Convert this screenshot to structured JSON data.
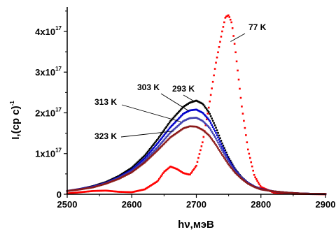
{
  "chart_data": {
    "type": "scatter",
    "xlabel": "hν,мэВ",
    "ylabel": "I,(ср с)",
    "ylabel_exp": "-1",
    "xlim": [
      2500,
      2900
    ],
    "ylim": [
      0,
      4.6e+17
    ],
    "x_ticks": [
      {
        "value": 2500,
        "label": "2500"
      },
      {
        "value": 2600,
        "label": "2600"
      },
      {
        "value": 2700,
        "label": "2700"
      },
      {
        "value": 2800,
        "label": "2800"
      },
      {
        "value": 2900,
        "label": "2900"
      }
    ],
    "y_ticks": [
      {
        "value": 0,
        "base": "0",
        "exp": ""
      },
      {
        "value": 1e+17,
        "base": "1x10",
        "exp": "17"
      },
      {
        "value": 2e+17,
        "base": "2x10",
        "exp": "17"
      },
      {
        "value": 3e+17,
        "base": "3x10",
        "exp": "17"
      },
      {
        "value": 4e+17,
        "base": "4x10",
        "exp": "17"
      }
    ],
    "grid": false,
    "legend": "none",
    "series": [
      {
        "name": "77 K",
        "color": "#ff0000",
        "x": [
          2500,
          2540,
          2560,
          2580,
          2600,
          2620,
          2640,
          2650,
          2660,
          2670,
          2680,
          2690,
          2700,
          2710,
          2720,
          2730,
          2740,
          2745,
          2750,
          2755,
          2760,
          2770,
          2780,
          2790,
          2800,
          2820,
          2850,
          2900
        ],
        "y": [
          2000000000000000.0,
          8000000000000000.0,
          9000000000000000.0,
          6000000000000000.0,
          5000000000000000.0,
          1.2e+16,
          3.2e+16,
          5.5e+16,
          6.8e+16,
          6.2e+16,
          5.2e+16,
          4.8e+16,
          7e+16,
          1.3e+17,
          2.2e+17,
          3.2e+17,
          4e+17,
          4.35e+17,
          4.4e+17,
          4.2e+17,
          3.6e+17,
          2.2e+17,
          1.1e+17,
          4.5e+16,
          1.8e+16,
          4000000000000000.0,
          1000000000000000.0,
          0
        ]
      },
      {
        "name": "293 K",
        "color": "#000000",
        "x": [
          2500,
          2520,
          2540,
          2560,
          2580,
          2600,
          2620,
          2640,
          2660,
          2680,
          2690,
          2700,
          2710,
          2720,
          2730,
          2740,
          2750,
          2760,
          2770,
          2780,
          2790,
          2800,
          2820,
          2840,
          2860,
          2880,
          2900
        ],
        "y": [
          8000000000000000.0,
          1.3e+16,
          2e+16,
          3e+16,
          4.5e+16,
          6.5e+16,
          9.5e+16,
          1.35e+17,
          1.8e+17,
          2.15e+17,
          2.25e+17,
          2.3e+17,
          2.22e+17,
          2e+17,
          1.65e+17,
          1.25e+17,
          9e+16,
          6.2e+16,
          4.2e+16,
          2.8e+16,
          1.9e+16,
          1.3e+16,
          7000000000000000.0,
          4000000000000000.0,
          2000000000000000.0,
          1000000000000000.0,
          1000000000000000.0
        ]
      },
      {
        "name": "303 K",
        "color": "#0000cc",
        "x": [
          2500,
          2520,
          2540,
          2560,
          2580,
          2600,
          2620,
          2640,
          2660,
          2680,
          2690,
          2700,
          2710,
          2720,
          2730,
          2740,
          2750,
          2760,
          2770,
          2780,
          2790,
          2800,
          2820,
          2840,
          2860,
          2880,
          2900
        ],
        "y": [
          8000000000000000.0,
          1.3e+16,
          1.9e+16,
          2.8e+16,
          4.2e+16,
          6e+16,
          8.8e+16,
          1.25e+17,
          1.65e+17,
          1.98e+17,
          2.06e+17,
          2.08e+17,
          2e+17,
          1.82e+17,
          1.52e+17,
          1.17e+17,
          8.6e+16,
          6e+16,
          4.1e+16,
          2.8e+16,
          1.9e+16,
          1.3e+16,
          7000000000000000.0,
          4000000000000000.0,
          2000000000000000.0,
          1000000000000000.0,
          1000000000000000.0
        ]
      },
      {
        "name": "313 K",
        "color": "#4040b0",
        "x": [
          2500,
          2520,
          2540,
          2560,
          2580,
          2600,
          2620,
          2640,
          2660,
          2680,
          2690,
          2700,
          2710,
          2720,
          2730,
          2740,
          2750,
          2760,
          2770,
          2780,
          2790,
          2800,
          2820,
          2840,
          2860,
          2880,
          2900
        ],
        "y": [
          8000000000000000.0,
          1.2e+16,
          1.8e+16,
          2.7e+16,
          4e+16,
          5.7e+16,
          8.2e+16,
          1.15e+17,
          1.52e+17,
          1.8e+17,
          1.87e+17,
          1.88e+17,
          1.8e+17,
          1.64e+17,
          1.38e+17,
          1.08e+17,
          8e+16,
          5.7e+16,
          4e+16,
          2.7e+16,
          1.8e+16,
          1.2e+16,
          7000000000000000.0,
          4000000000000000.0,
          2000000000000000.0,
          1000000000000000.0,
          1000000000000000.0
        ]
      },
      {
        "name": "323 K",
        "color": "#8b1a1a",
        "x": [
          2500,
          2520,
          2540,
          2560,
          2580,
          2600,
          2620,
          2640,
          2660,
          2680,
          2690,
          2700,
          2710,
          2720,
          2730,
          2740,
          2750,
          2760,
          2770,
          2780,
          2790,
          2800,
          2820,
          2840,
          2860,
          2880,
          2900
        ],
        "y": [
          8000000000000000.0,
          1.2e+16,
          1.7e+16,
          2.6e+16,
          3.8e+16,
          5.4e+16,
          7.8e+16,
          1.08e+17,
          1.4e+17,
          1.62e+17,
          1.67e+17,
          1.66e+17,
          1.58e+17,
          1.44e+17,
          1.22e+17,
          9.7e+16,
          7.3e+16,
          5.3e+16,
          3.8e+16,
          2.6e+16,
          1.8e+16,
          1.2e+16,
          7000000000000000.0,
          4000000000000000.0,
          2000000000000000.0,
          1000000000000000.0,
          1000000000000000.0
        ]
      }
    ],
    "annotations": [
      {
        "text": "77 K",
        "series": "77 K",
        "x": 2753,
        "y": 3.75e+17
      },
      {
        "text": "293 K",
        "series": "293 K",
        "x": 2697,
        "y": 2.28e+17
      },
      {
        "text": "303 K",
        "series": "303 K",
        "x": 2688,
        "y": 2.05e+17
      },
      {
        "text": "313 K",
        "series": "313 K",
        "x": 2676,
        "y": 1.78e+17
      },
      {
        "text": "323 K",
        "series": "323 K",
        "x": 2665,
        "y": 1.55e+17
      }
    ]
  }
}
